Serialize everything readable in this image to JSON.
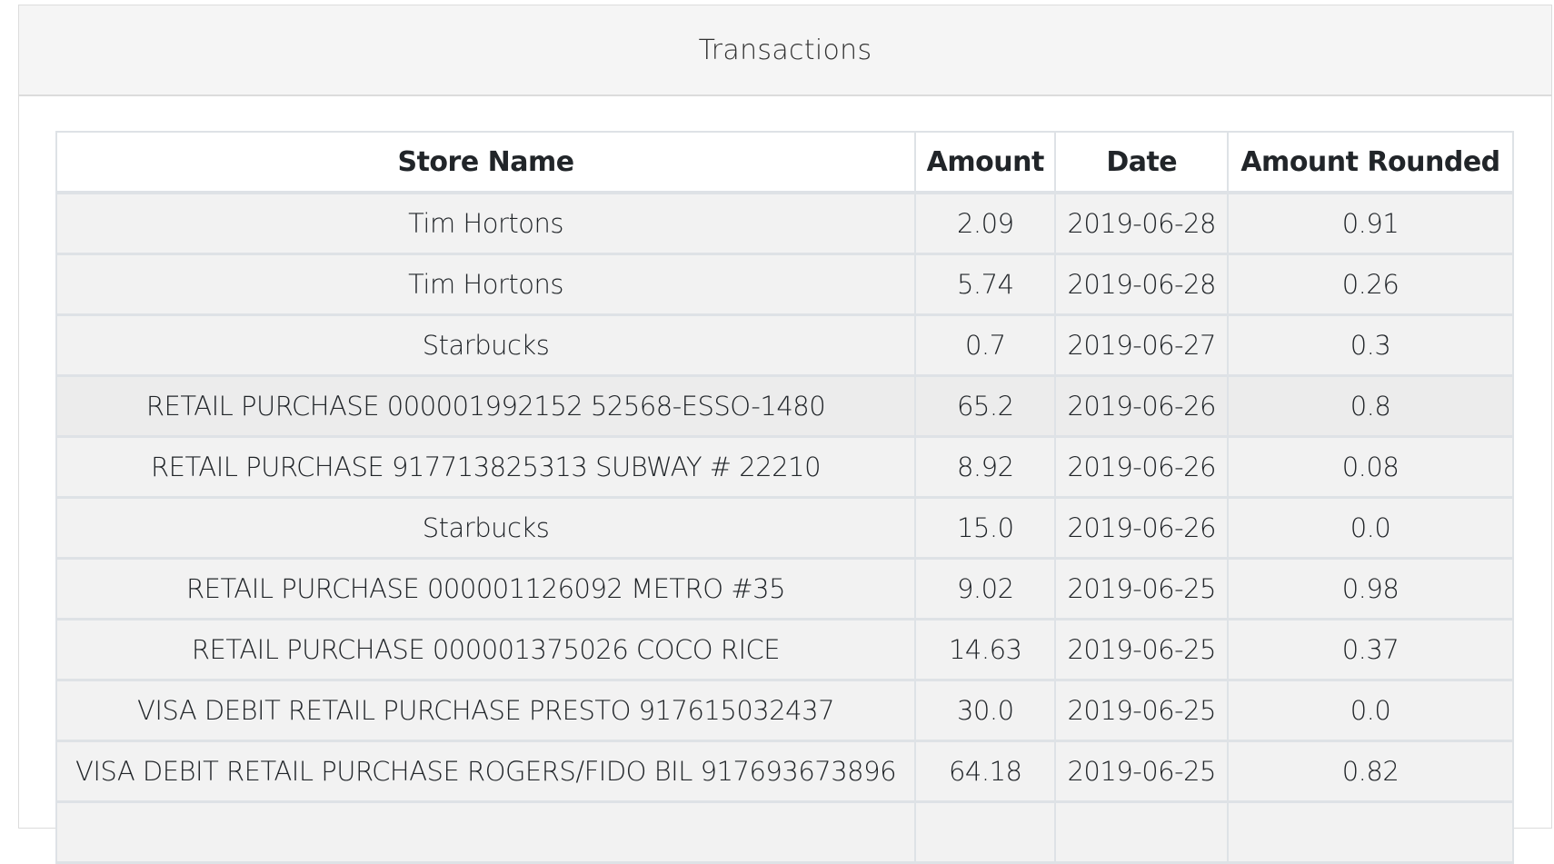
{
  "panel": {
    "title": "Transactions"
  },
  "table": {
    "columns": [
      "Store Name",
      "Amount",
      "Date",
      "Amount Rounded"
    ],
    "rows": [
      [
        "Tim Hortons",
        "2.09",
        "2019-06-28",
        "0.91"
      ],
      [
        "Tim Hortons",
        "5.74",
        "2019-06-28",
        "0.26"
      ],
      [
        "Starbucks",
        "0.7",
        "2019-06-27",
        "0.3"
      ],
      [
        "RETAIL PURCHASE 000001992152 52568-ESSO-1480",
        "65.2",
        "2019-06-26",
        "0.8"
      ],
      [
        "RETAIL PURCHASE 917713825313 SUBWAY # 22210",
        "8.92",
        "2019-06-26",
        "0.08"
      ],
      [
        "Starbucks",
        "15.0",
        "2019-06-26",
        "0.0"
      ],
      [
        "RETAIL PURCHASE 000001126092 METRO #35",
        "9.02",
        "2019-06-25",
        "0.98"
      ],
      [
        "RETAIL PURCHASE 000001375026 COCO RICE",
        "14.63",
        "2019-06-25",
        "0.37"
      ],
      [
        "VISA DEBIT RETAIL PURCHASE PRESTO 917615032437",
        "30.0",
        "2019-06-25",
        "0.0"
      ],
      [
        "VISA DEBIT RETAIL PURCHASE ROGERS/FIDO BIL 917693673896",
        "64.18",
        "2019-06-25",
        "0.82"
      ],
      [
        "",
        "",
        "",
        ""
      ]
    ],
    "hovered_row": 3
  }
}
